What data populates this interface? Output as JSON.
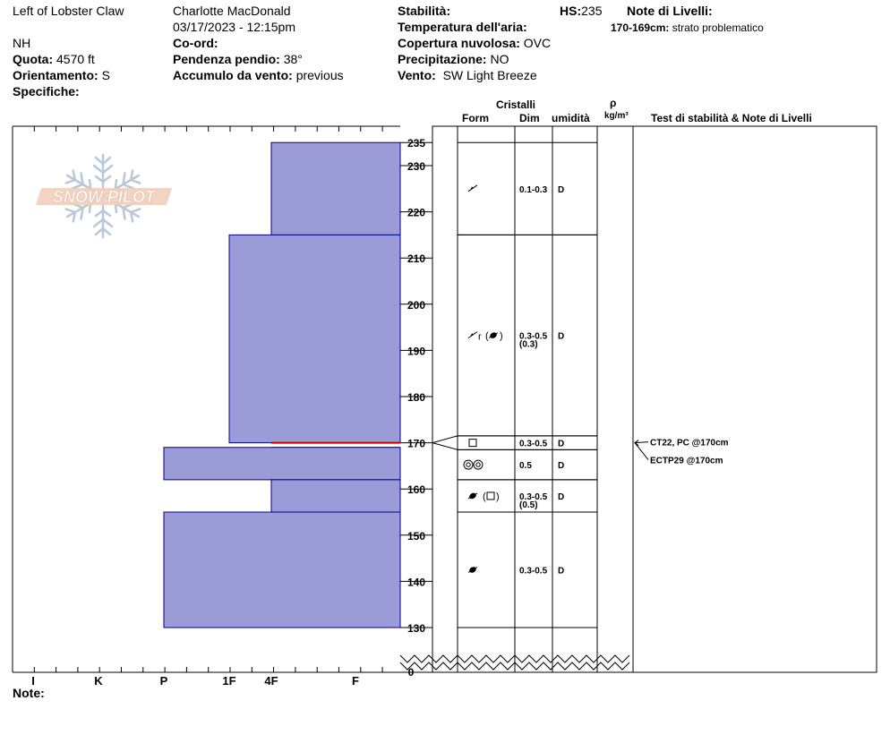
{
  "header": {
    "location": "Left of Lobster Claw",
    "observer": "Charlotte MacDonald",
    "datetime": "03/17/2023 - 12:15pm",
    "state": "NH",
    "elevation_label": "Quota:",
    "elevation": "4570 ft",
    "coord_label": "Co-ord:",
    "coord": "",
    "slope_label": "Pendenza pendio:",
    "slope": "38°",
    "aspect_label": "Orientamento:",
    "aspect": "S",
    "wind_loading_label": "Accumulo da vento:",
    "wind_loading": "previous",
    "specifics_label": "Specifiche:",
    "stability_label": "Stabilità:",
    "air_temp_label": "Temperatura dell'aria:",
    "cloud_label": "Copertura nuvolosa:",
    "cloud": "OVC",
    "precip_label": "Precipitazione:",
    "precip": "NO",
    "wind_label": "Vento:",
    "wind": "SW Light Breeze",
    "hs_label": "HS:",
    "hs": "235",
    "layer_notes_label": "Note di Livelli:",
    "layer_note_depth": "170-169cm:",
    "layer_note_text": "strato problematico",
    "note_label": "Note:"
  },
  "watermark": {
    "text": "SNOW PILOT"
  },
  "columns": {
    "crystals": "Cristalli",
    "form": "Form",
    "dim": "Dim",
    "moisture": "umidità",
    "rho": "ρ",
    "density_unit": "kg/m³",
    "stability_notes": "Test di stabilità & Note di Livelli"
  },
  "chart_data": {
    "type": "bar",
    "orientation": "horizontal",
    "y_axis": {
      "label": "",
      "min": 0,
      "range_shown": [
        130,
        235
      ],
      "ticks": [
        130,
        140,
        150,
        160,
        170,
        180,
        190,
        200,
        210,
        220,
        230,
        235
      ],
      "bottom_label": "0"
    },
    "x_axis": {
      "categories": [
        "I",
        "K",
        "P",
        "1F",
        "4F",
        "F"
      ]
    },
    "hardness_layers": [
      {
        "top": 235,
        "bottom": 215,
        "hardness": "4F"
      },
      {
        "top": 215,
        "bottom": 170,
        "hardness": "1F"
      },
      {
        "top": 170,
        "bottom": 169,
        "hardness": "4F",
        "problematic": true
      },
      {
        "top": 169,
        "bottom": 162,
        "hardness": "P"
      },
      {
        "top": 162,
        "bottom": 155,
        "hardness": "4F"
      },
      {
        "top": 155,
        "bottom": 130,
        "hardness": "P"
      }
    ],
    "crystal_layers": [
      {
        "top": 235,
        "bottom": 215,
        "form": "decomposing",
        "dim": "0.1-0.3",
        "dim2": "",
        "moisture": "D"
      },
      {
        "top": 215,
        "bottom": 171.5,
        "form": "decomposing-rounded-melt",
        "dim": "0.3-0.5",
        "dim2": "(0.3)",
        "moisture": "D"
      },
      {
        "top": 171.5,
        "bottom": 168.5,
        "form": "faceted",
        "dim": "0.3-0.5",
        "dim2": "",
        "moisture": "D"
      },
      {
        "top": 168.5,
        "bottom": 162,
        "form": "melt-cluster",
        "dim": "0.5",
        "dim2": "",
        "moisture": "D"
      },
      {
        "top": 162,
        "bottom": 155,
        "form": "melt-faceted",
        "dim": "0.3-0.5",
        "dim2": "(0.5)",
        "moisture": "D"
      },
      {
        "top": 155,
        "bottom": 130,
        "form": "melt-freeze",
        "dim": "0.3-0.5",
        "dim2": "",
        "moisture": "D"
      }
    ],
    "stability_tests": [
      {
        "depth": 170,
        "label": "CT22, PC @170cm"
      },
      {
        "depth": 170,
        "label": "ECTP29 @170cm"
      }
    ]
  },
  "colors": {
    "layer_fill": "#9b9bd8",
    "layer_stroke": "#00008b",
    "problem_line": "#cc0000"
  }
}
